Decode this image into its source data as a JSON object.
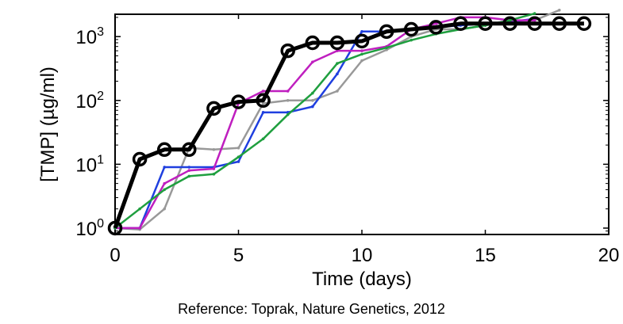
{
  "chart_data": {
    "type": "line",
    "title": "",
    "xlabel": "Time (days)",
    "ylabel": "[TMP] (µg/ml)",
    "xlim": [
      0,
      20
    ],
    "ylim_log10": [
      -0.1,
      3.35
    ],
    "y_scale": "log",
    "x_ticks": [
      "0",
      "5",
      "10",
      "15",
      "20"
    ],
    "y_ticks": [
      {
        "base": "10",
        "exp": "0"
      },
      {
        "base": "10",
        "exp": "1"
      },
      {
        "base": "10",
        "exp": "2"
      },
      {
        "base": "10",
        "exp": "3"
      }
    ],
    "grid": false,
    "legend": "none",
    "series": [
      {
        "color": "#999999",
        "x": [
          0,
          1,
          2,
          3,
          4,
          5,
          6,
          7,
          8,
          9,
          10,
          11,
          12,
          13,
          14,
          15,
          16,
          17,
          18
        ],
        "y": [
          1,
          0.95,
          2,
          18,
          17,
          18,
          90,
          100,
          100,
          140,
          420,
          620,
          1000,
          1300,
          1300,
          1500,
          1700,
          1800,
          2600
        ]
      },
      {
        "color": "#1f3fdf",
        "x": [
          0,
          1,
          2,
          3,
          4,
          5,
          6,
          7,
          8,
          9,
          10,
          11,
          12,
          13,
          14,
          15,
          16,
          17
        ],
        "y": [
          1,
          1,
          9,
          9,
          9,
          11,
          65,
          65,
          80,
          260,
          1200,
          1200,
          1300,
          1400,
          1500,
          1600,
          1700,
          1900
        ]
      },
      {
        "color": "#bf1fbf",
        "x": [
          0,
          1,
          2,
          3,
          4,
          5,
          6,
          7,
          8,
          9,
          10,
          11,
          12,
          13,
          14,
          15,
          16,
          17
        ],
        "y": [
          1,
          1,
          5,
          8,
          8.5,
          90,
          140,
          140,
          400,
          600,
          600,
          700,
          1300,
          1600,
          2000,
          2000,
          1800,
          1800
        ]
      },
      {
        "color": "#1f9f3f",
        "x": [
          0,
          1,
          2,
          3,
          4,
          5,
          6,
          7,
          8,
          9,
          10,
          11,
          12,
          13,
          14,
          15,
          16,
          17
        ],
        "y": [
          1,
          2,
          4,
          6.5,
          7,
          13,
          25,
          60,
          130,
          380,
          530,
          670,
          880,
          1100,
          1300,
          1500,
          1800,
          2300
        ]
      },
      {
        "color": "#000000",
        "markers": "circle",
        "x": [
          0,
          1,
          2,
          3,
          4,
          5,
          6,
          7,
          8,
          9,
          10,
          11,
          12,
          13,
          14,
          15,
          16,
          17,
          18,
          19
        ],
        "y": [
          1,
          12,
          17,
          17,
          75,
          95,
          100,
          600,
          800,
          800,
          850,
          1200,
          1300,
          1400,
          1600,
          1600,
          1600,
          1600,
          1600,
          1600
        ]
      }
    ]
  },
  "reference": {
    "label": "Reference:",
    "text": " Toprak, Nature Genetics, 2012"
  }
}
